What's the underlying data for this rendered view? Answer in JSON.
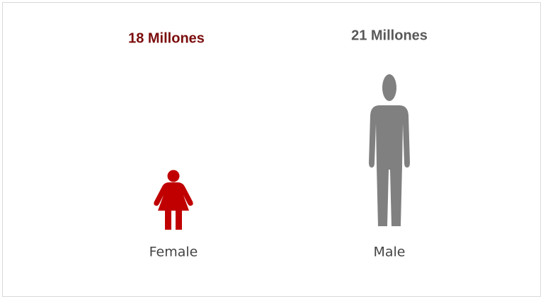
{
  "chart_data": {
    "type": "pictograph",
    "categories": [
      "Female",
      "Male"
    ],
    "values": [
      18,
      21
    ],
    "value_labels": [
      "18 Millones",
      "21 Millones"
    ],
    "colors": [
      "#c00000",
      "#808080"
    ],
    "label_colors": [
      "#7b0c0c",
      "#595959"
    ]
  }
}
